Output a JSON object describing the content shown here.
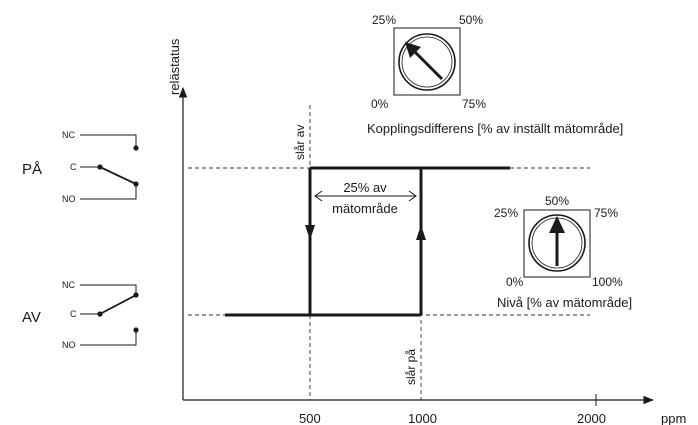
{
  "axes": {
    "y_label": "relästatus",
    "x_unit": "ppm",
    "x_ticks": [
      "500",
      "1000",
      "2000"
    ]
  },
  "states": {
    "on": "PÅ",
    "off": "AV"
  },
  "relay": {
    "nc": "NC",
    "c": "C",
    "no": "NO"
  },
  "markers": {
    "switch_off": "slår av",
    "switch_on": "slår på"
  },
  "hysteresis": {
    "line1": "25% av",
    "line2": "mätområde"
  },
  "dial_differential": {
    "caption": "Kopplingsdifferens [% av inställt mätområde]",
    "labels": [
      "25%",
      "50%",
      "0%",
      "75%"
    ]
  },
  "dial_level": {
    "caption": "Nivå [% av mätområde]",
    "labels": [
      "50%",
      "25%",
      "75%",
      "0%",
      "100%"
    ]
  },
  "chart_data": {
    "type": "line",
    "x_unit": "ppm",
    "x_ticks": [
      500,
      1000,
      2000
    ],
    "y_states": [
      "AV",
      "PÅ"
    ],
    "switch_off_ppm": 500,
    "switch_on_ppm": 1000,
    "hysteresis_percent_of_range": 25,
    "differential_dial_percent": 25,
    "level_dial_percent": 50
  }
}
